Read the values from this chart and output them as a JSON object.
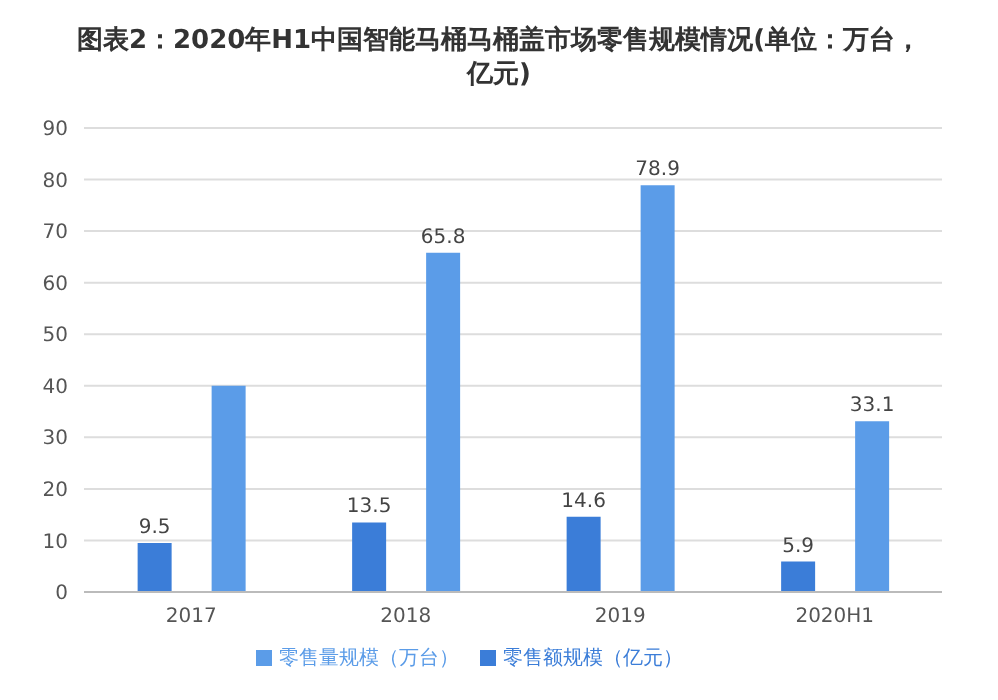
{
  "chart_data": {
    "type": "bar",
    "title": "图表2：2020年H1中国智能马桶马桶盖市场零售规模情况(单位：万台，亿元)",
    "categories": [
      "2017",
      "2018",
      "2019",
      "2020H1"
    ],
    "series": [
      {
        "name": "零售额规模（亿元）",
        "color": "#3b7dd8",
        "values": [
          9.5,
          13.5,
          14.6,
          5.9
        ],
        "value_labels": [
          "9.5",
          "13.5",
          "14.6",
          "5.9"
        ]
      },
      {
        "name": "零售量规模（万台）",
        "color": "#5b9ce8",
        "values": [
          40,
          65.8,
          78.9,
          33.1
        ],
        "value_labels": [
          null,
          "65.8",
          "78.9",
          "33.1"
        ]
      }
    ],
    "ylim": [
      0,
      90
    ],
    "yticks": [
      0,
      10,
      20,
      30,
      40,
      50,
      60,
      70,
      80,
      90
    ],
    "grid": "y",
    "legend": "bottom"
  }
}
